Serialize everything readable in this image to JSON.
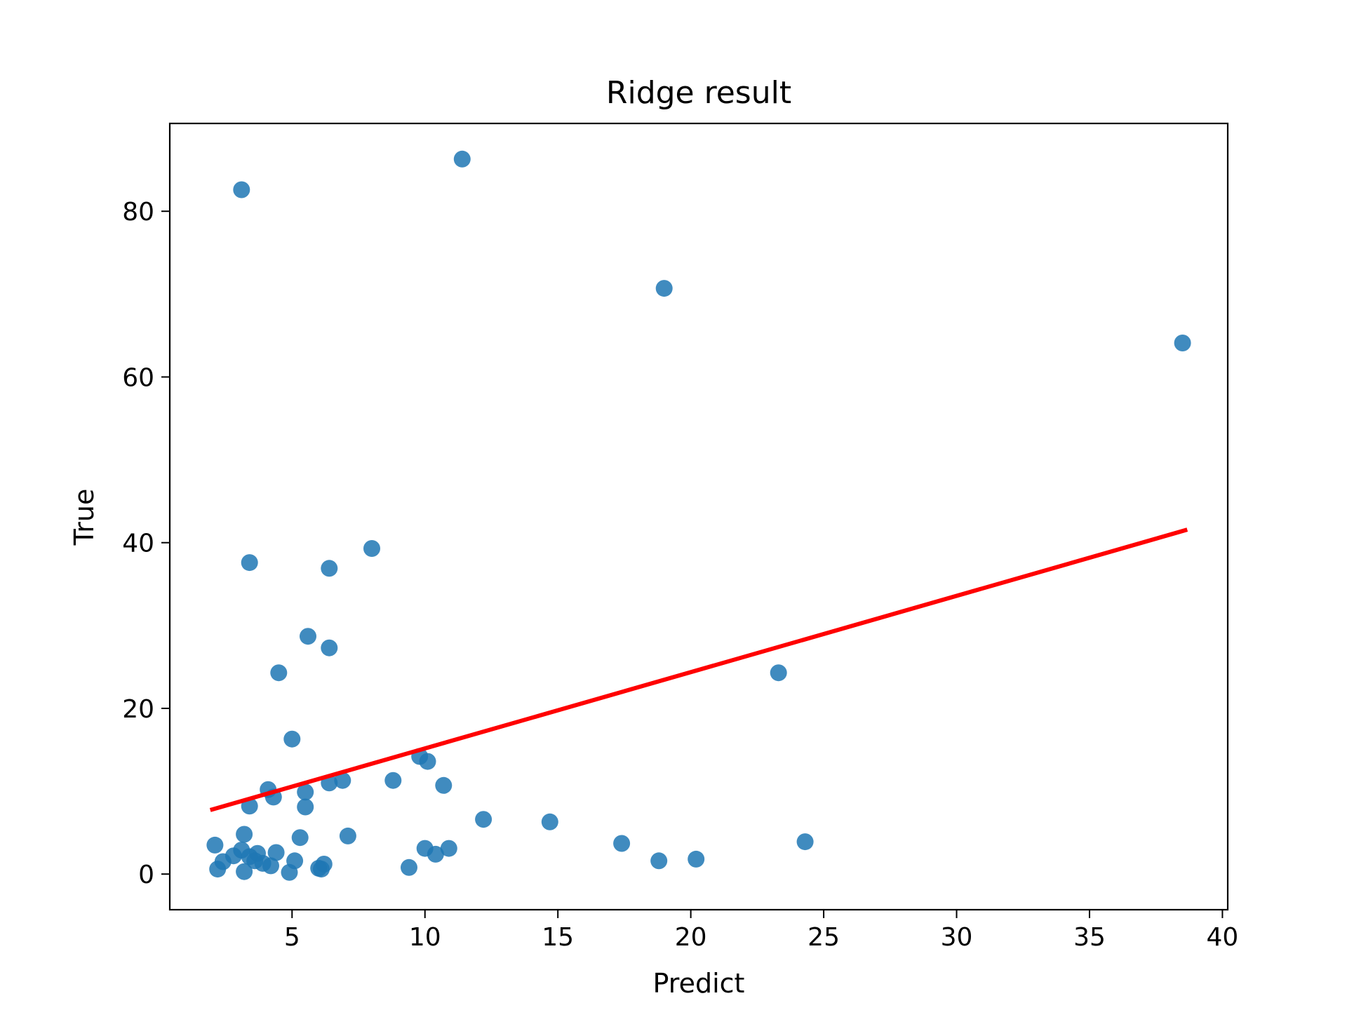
{
  "chart_data": {
    "type": "scatter",
    "title": "Ridge result",
    "xlabel": "Predict",
    "ylabel": "True",
    "xlim": [
      0.4,
      40.2
    ],
    "ylim": [
      -4.3,
      90.6
    ],
    "xticks": [
      5,
      10,
      15,
      20,
      25,
      30,
      35,
      40
    ],
    "yticks": [
      0,
      20,
      40,
      60,
      80
    ],
    "grid": false,
    "legend": "none",
    "colors": {
      "points": "#1f77b4",
      "line": "#ff0000"
    },
    "series": [
      {
        "kind": "points",
        "x": [
          11.4,
          3.1,
          19.0,
          38.5,
          8.0,
          3.4,
          6.4,
          5.6,
          6.4,
          4.5,
          23.3,
          5.0,
          9.8,
          10.1,
          8.8,
          10.7,
          6.9,
          6.4,
          5.5,
          4.1,
          4.3,
          3.4,
          5.5,
          12.2,
          14.7,
          7.1,
          3.2,
          5.3,
          17.4,
          24.3,
          2.1,
          2.8,
          3.1,
          3.4,
          3.7,
          4.4,
          10.0,
          10.4,
          10.9,
          2.4,
          3.9,
          5.1,
          18.8,
          20.2,
          6.2,
          6.0,
          9.4,
          2.2,
          3.2,
          4.9,
          3.6,
          4.2,
          6.1
        ],
        "y": [
          86.3,
          82.6,
          70.7,
          64.1,
          39.3,
          37.6,
          36.9,
          28.7,
          27.3,
          24.3,
          24.3,
          16.3,
          14.2,
          13.6,
          11.3,
          10.7,
          11.3,
          11.0,
          9.9,
          10.2,
          9.3,
          8.2,
          8.1,
          6.6,
          6.3,
          4.6,
          4.8,
          4.4,
          3.7,
          3.9,
          3.5,
          2.2,
          2.9,
          2.1,
          2.5,
          2.6,
          3.1,
          2.4,
          3.1,
          1.5,
          1.3,
          1.6,
          1.6,
          1.8,
          1.2,
          0.7,
          0.8,
          0.6,
          0.3,
          0.2,
          1.6,
          1.0,
          0.6
        ]
      },
      {
        "kind": "line",
        "x": [
          2.0,
          38.6
        ],
        "y": [
          7.8,
          41.5
        ]
      }
    ]
  }
}
